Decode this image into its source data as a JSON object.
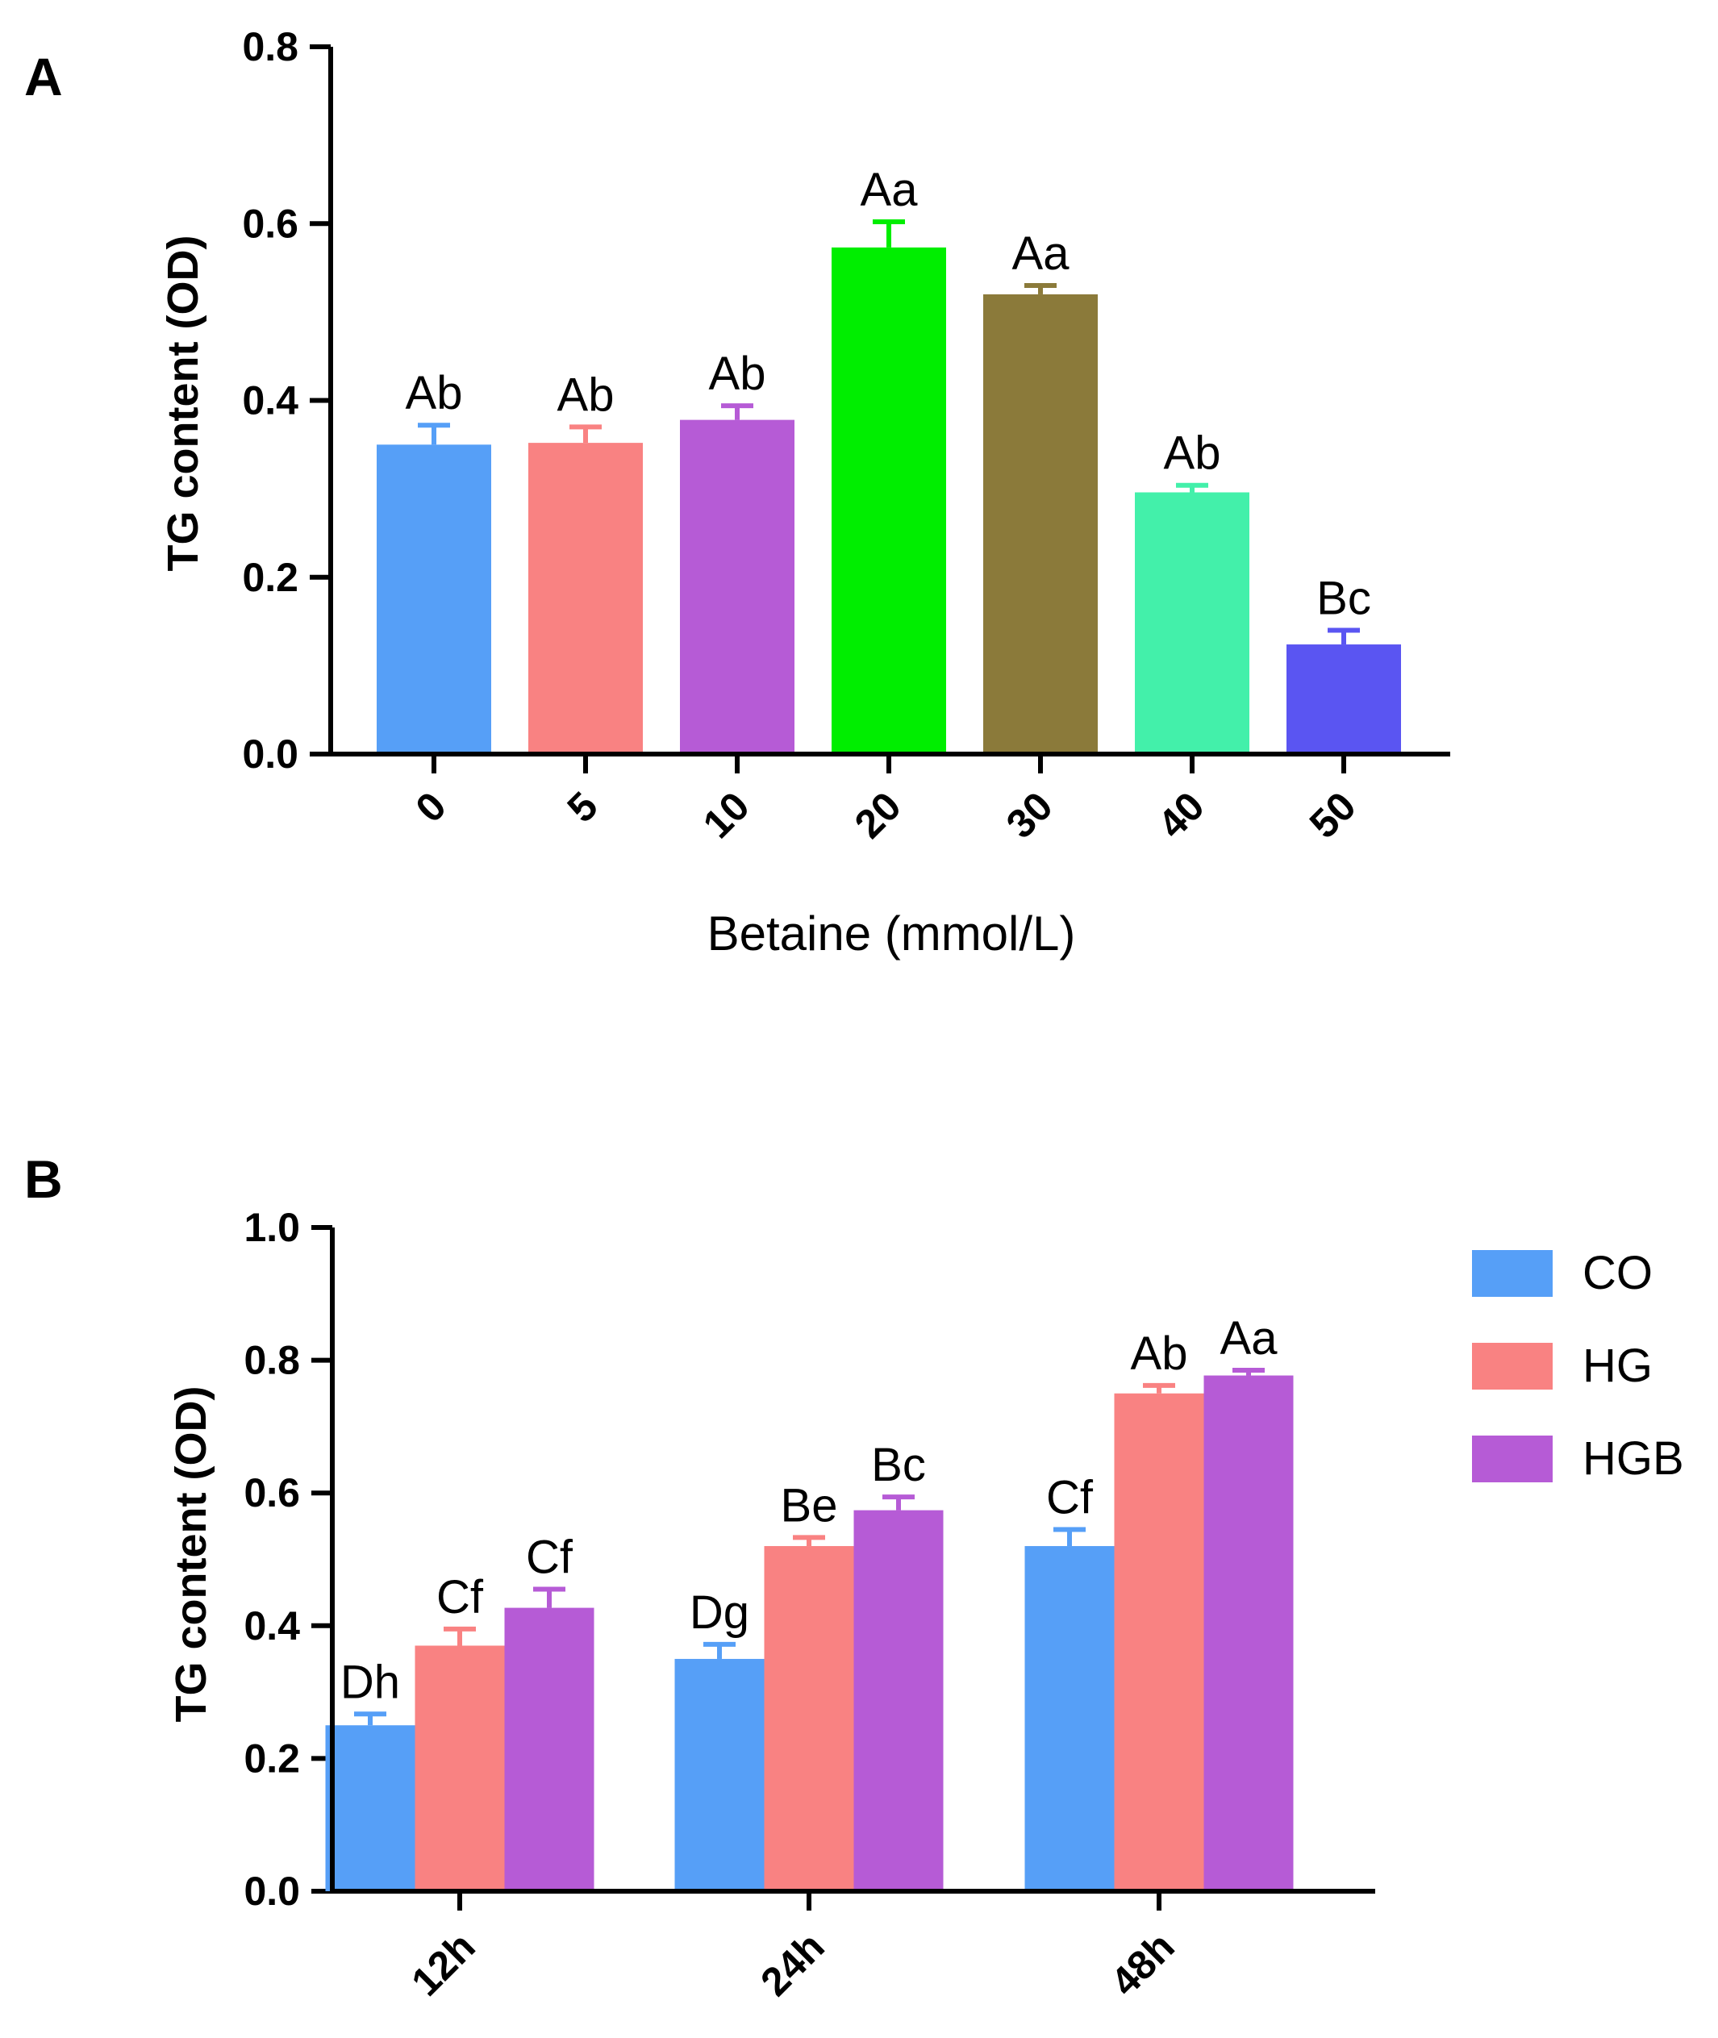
{
  "chart_data": [
    {
      "type": "bar",
      "panel_label": "A",
      "categories": [
        "0",
        "5",
        "10",
        "20",
        "30",
        "40",
        "50"
      ],
      "values": [
        0.35,
        0.352,
        0.378,
        0.573,
        0.52,
        0.296,
        0.124
      ],
      "errors": [
        0.022,
        0.018,
        0.016,
        0.029,
        0.01,
        0.008,
        0.016
      ],
      "labels": [
        "Ab",
        "Ab",
        "Ab",
        "Aa",
        "Aa",
        "Ab",
        "Bc"
      ],
      "colors": [
        "#569ff7",
        "#f98282",
        "#b65bd6",
        "#00ee00",
        "#8b7a3a",
        "#43f0aa",
        "#5a55f2"
      ],
      "ylim": [
        0,
        0.8
      ],
      "yticks": [
        "0.0",
        "0.2",
        "0.4",
        "0.6",
        "0.8"
      ],
      "xlabel": "Betaine (mmol/L)",
      "ylabel": "TG content (OD)"
    },
    {
      "type": "bar",
      "panel_label": "B",
      "categories": [
        "12h",
        "24h",
        "48h"
      ],
      "series": [
        {
          "name": "CO",
          "color": "#569ff7",
          "values": [
            0.25,
            0.35,
            0.52
          ],
          "errors": [
            0.017,
            0.022,
            0.025
          ],
          "labels": [
            "Dh",
            "Dg",
            "Cf"
          ]
        },
        {
          "name": "HG",
          "color": "#f98282",
          "values": [
            0.37,
            0.52,
            0.75
          ],
          "errors": [
            0.025,
            0.013,
            0.012
          ],
          "labels": [
            "Cf",
            "Be",
            "Ab"
          ]
        },
        {
          "name": "HGB",
          "color": "#b65bd6",
          "values": [
            0.427,
            0.574,
            0.777
          ],
          "errors": [
            0.028,
            0.02,
            0.008
          ],
          "labels": [
            "Cf",
            "Bc",
            "Aa"
          ]
        }
      ],
      "ylim": [
        0,
        1.0
      ],
      "yticks": [
        "0.0",
        "0.2",
        "0.4",
        "0.6",
        "0.8",
        "1.0"
      ],
      "xlabel": "",
      "ylabel": "TG content (OD)",
      "legend_position": "top-right"
    }
  ]
}
